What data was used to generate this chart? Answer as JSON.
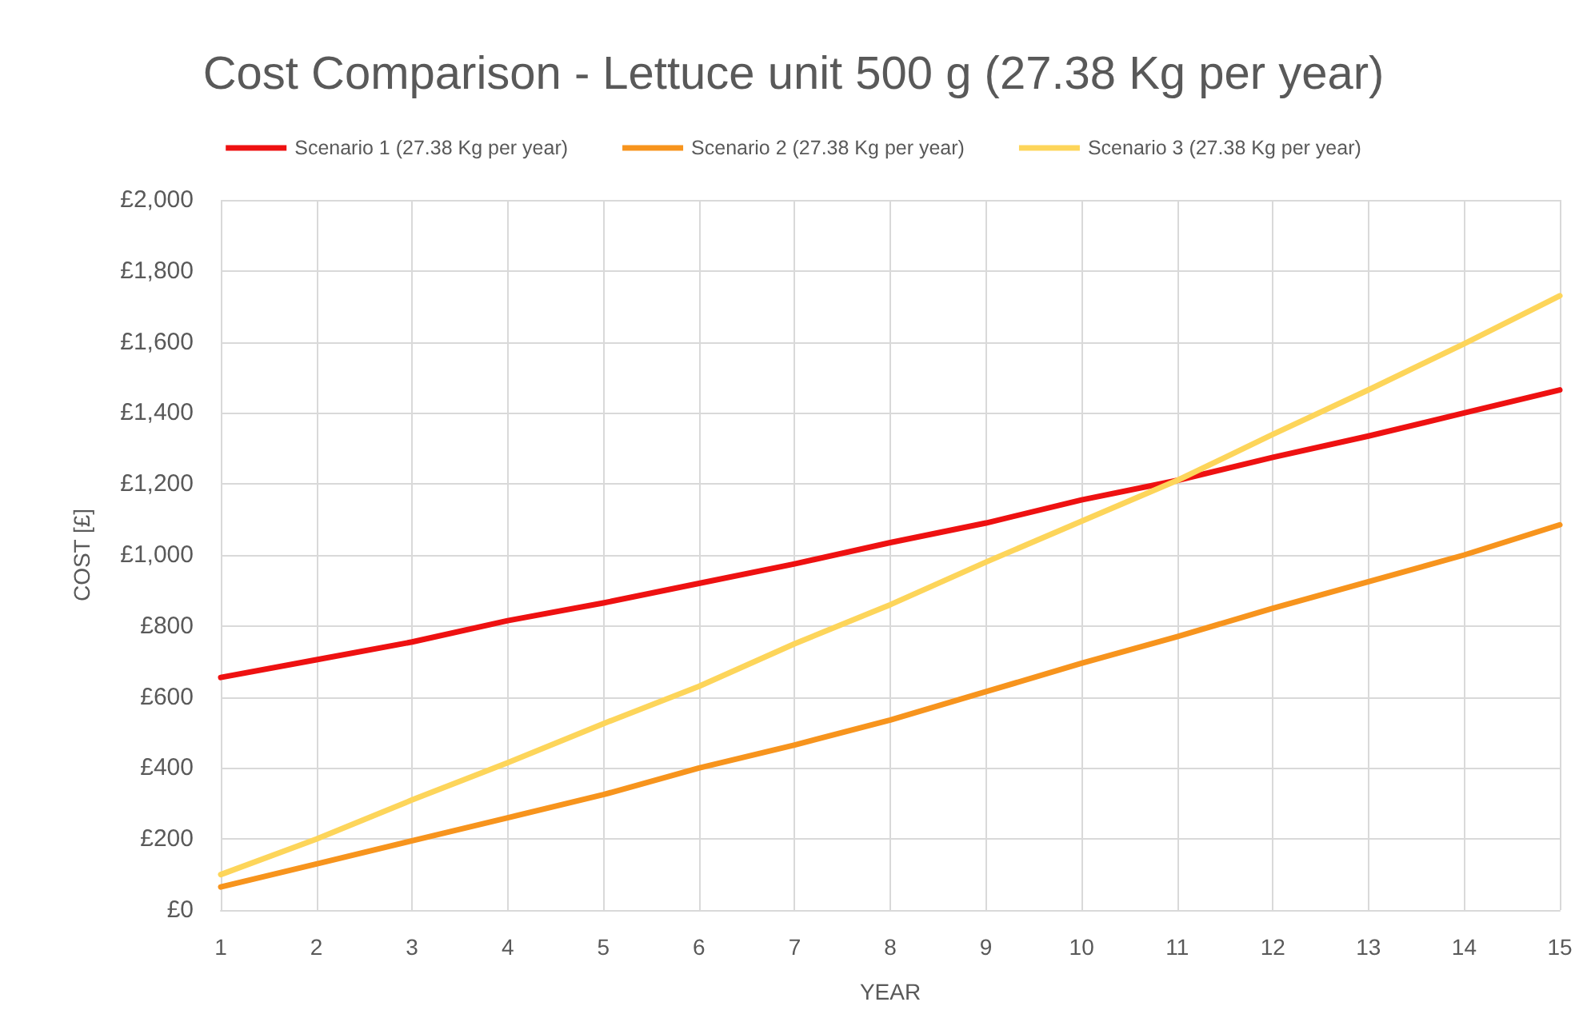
{
  "chart_data": {
    "type": "line",
    "title": "Cost Comparison - Lettuce unit 500 g (27.38 Kg per year)",
    "xlabel": "YEAR",
    "ylabel": "COST [£]",
    "x": [
      1,
      2,
      3,
      4,
      5,
      6,
      7,
      8,
      9,
      10,
      11,
      12,
      13,
      14,
      15
    ],
    "series": [
      {
        "name": "Scenario 1 (27.38 Kg per year)",
        "color": "#ee1111",
        "values": [
          655,
          705,
          755,
          815,
          865,
          920,
          975,
          1035,
          1090,
          1155,
          1210,
          1275,
          1335,
          1400,
          1465
        ]
      },
      {
        "name": "Scenario 2 (27.38 Kg per year)",
        "color": "#f7941d",
        "values": [
          65,
          130,
          195,
          260,
          325,
          400,
          465,
          535,
          615,
          695,
          770,
          850,
          925,
          1000,
          1085
        ]
      },
      {
        "name": "Scenario 3 (27.38 Kg per year)",
        "color": "#fdd55a",
        "values": [
          100,
          200,
          310,
          415,
          525,
          630,
          750,
          860,
          980,
          1095,
          1210,
          1340,
          1465,
          1595,
          1730
        ]
      }
    ],
    "xlim": [
      1,
      15
    ],
    "xticks": [
      1,
      2,
      3,
      4,
      5,
      6,
      7,
      8,
      9,
      10,
      11,
      12,
      13,
      14,
      15
    ],
    "ylim": [
      0,
      2000
    ],
    "yticks": [
      {
        "value": 0,
        "label": "£0"
      },
      {
        "value": 200,
        "label": "£200"
      },
      {
        "value": 400,
        "label": "£400"
      },
      {
        "value": 600,
        "label": "£600"
      },
      {
        "value": 800,
        "label": "£800"
      },
      {
        "value": 1000,
        "label": "£1,000"
      },
      {
        "value": 1200,
        "label": "£1,200"
      },
      {
        "value": 1400,
        "label": "£1,400"
      },
      {
        "value": 1600,
        "label": "£1,600"
      },
      {
        "value": 1800,
        "label": "£1,800"
      },
      {
        "value": 2000,
        "label": "£2,000"
      }
    ],
    "grid": true,
    "legend": "top",
    "marker": "none",
    "line_style": "solid"
  }
}
